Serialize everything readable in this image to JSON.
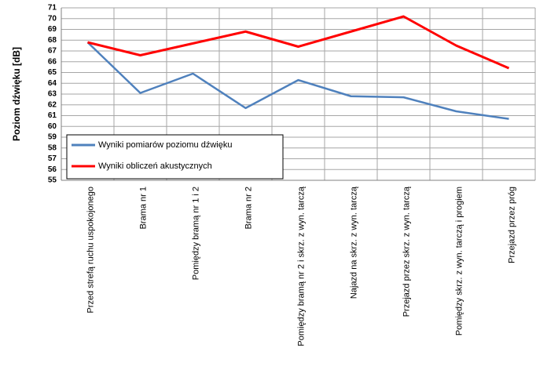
{
  "chart_data": {
    "type": "line",
    "y_label": "Poziom dźwięku [dB]",
    "categories": [
      "Przed strefą ruchu uspokojonego",
      "Brama nr 1",
      "Pomiędzy bramą nr 1 i 2",
      "Brama nr 2",
      "Pomiędzy bramą nr 2 i skrz. z wyn. tarczą",
      "Najazd na skrz. z wyn. tarczą",
      "Przejazd przez skrz. z wyn. tarczą",
      "Pomiędzy skrz. z wyn. tarczą i progiem",
      "Przejazd przez próg"
    ],
    "series": [
      {
        "name": "Wyniki pomiarów poziomu dźwięku",
        "color": "#4f81bd",
        "values": [
          67.8,
          63.1,
          64.9,
          61.7,
          64.3,
          62.8,
          62.7,
          61.4,
          60.7
        ]
      },
      {
        "name": "Wyniki obliczeń akustycznych",
        "color": "#ff0000",
        "values": [
          67.8,
          66.6,
          67.7,
          68.8,
          67.4,
          68.8,
          70.2,
          67.5,
          65.4
        ]
      }
    ],
    "ylim": [
      55,
      71
    ],
    "yticks": [
      55,
      56,
      57,
      58,
      59,
      60,
      61,
      62,
      63,
      64,
      65,
      66,
      67,
      68,
      69,
      70,
      71
    ],
    "grid": true,
    "legend": "lower left"
  }
}
